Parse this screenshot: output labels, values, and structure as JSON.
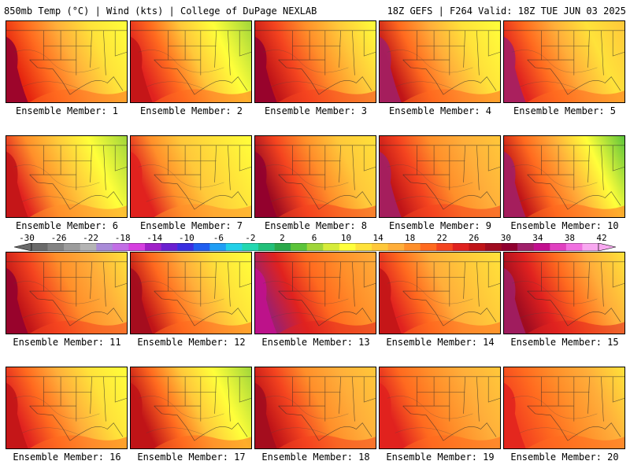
{
  "header": {
    "left": "850mb Temp (°C) | Wind (kts) | College of DuPage NEXLAB",
    "right": "18Z GEFS | F264 Valid: 18Z TUE JUN 03 2025"
  },
  "colorbar": {
    "tick_labels": [
      "-30",
      "-26",
      "-22",
      "-18",
      "-14",
      "-10",
      "-6",
      "-2",
      "2",
      "6",
      "10",
      "14",
      "18",
      "22",
      "26",
      "30",
      "34",
      "38",
      "42"
    ],
    "colors": [
      "#6a6a6a",
      "#838383",
      "#9c9c9c",
      "#b4b4b4",
      "#a98bd8",
      "#c26ee6",
      "#d63fe0",
      "#a020c8",
      "#6a1fd0",
      "#3a2fe0",
      "#1f5ef0",
      "#1f9ef5",
      "#22d0e8",
      "#22d8b0",
      "#22c07a",
      "#2aa84a",
      "#5cc43a",
      "#a0d63a",
      "#d6ec3a",
      "#ffff3a",
      "#ffe23a",
      "#ffc83a",
      "#ffae3a",
      "#ff8f2a",
      "#ff6a1f",
      "#f4441f",
      "#e0221f",
      "#c01418",
      "#a00c20",
      "#900030",
      "#a0206a",
      "#c2108f",
      "#e040c0",
      "#f070e0",
      "#f8a8f0"
    ]
  },
  "members": [
    {
      "label": "Ensemble Member: 1",
      "palette": [
        "#e5240f",
        "#ff6a1f",
        "#ffae3a",
        "#ffe23a",
        "#ffff3a"
      ],
      "west": "#900030"
    },
    {
      "label": "Ensemble Member: 2",
      "palette": [
        "#e0221f",
        "#ff6a1f",
        "#ffc83a",
        "#ffff3a",
        "#a0d63a"
      ],
      "west": "#c01418"
    },
    {
      "label": "Ensemble Member: 3",
      "palette": [
        "#c01418",
        "#f4441f",
        "#ff8f2a",
        "#ffc83a",
        "#ffff3a"
      ],
      "west": "#900030"
    },
    {
      "label": "Ensemble Member: 4",
      "palette": [
        "#c01418",
        "#ff6a1f",
        "#ffae3a",
        "#ffe23a",
        "#ffff3a"
      ],
      "west": "#a0206a"
    },
    {
      "label": "Ensemble Member: 5",
      "palette": [
        "#e0221f",
        "#ff6a1f",
        "#ffae3a",
        "#ffe23a",
        "#ffc83a"
      ],
      "west": "#a0206a"
    },
    {
      "label": "Ensemble Member: 6",
      "palette": [
        "#e0221f",
        "#ff8f2a",
        "#ffc83a",
        "#ffff3a",
        "#a0d63a"
      ],
      "west": "#c01418"
    },
    {
      "label": "Ensemble Member: 7",
      "palette": [
        "#e0221f",
        "#ff8f2a",
        "#ffc83a",
        "#ffe23a",
        "#ffff3a"
      ],
      "west": "#e0221f"
    },
    {
      "label": "Ensemble Member: 8",
      "palette": [
        "#a00c20",
        "#f4441f",
        "#ff8f2a",
        "#ffc83a",
        "#ffe23a"
      ],
      "west": "#900030"
    },
    {
      "label": "Ensemble Member: 9",
      "palette": [
        "#c01418",
        "#f4441f",
        "#ff8f2a",
        "#ffae3a",
        "#ffc83a"
      ],
      "west": "#a0206a"
    },
    {
      "label": "Ensemble Member: 10",
      "palette": [
        "#c01418",
        "#ff6a1f",
        "#ffae3a",
        "#ffff3a",
        "#5cc43a"
      ],
      "west": "#a0206a"
    },
    {
      "label": "Ensemble Member: 11",
      "palette": [
        "#c01418",
        "#f4441f",
        "#ff8f2a",
        "#ffae3a",
        "#ffe23a"
      ],
      "west": "#900030"
    },
    {
      "label": "Ensemble Member: 12",
      "palette": [
        "#c01418",
        "#ff6a1f",
        "#ffae3a",
        "#ffe23a",
        "#ffff3a"
      ],
      "west": "#a00c20"
    },
    {
      "label": "Ensemble Member: 13",
      "palette": [
        "#a0206a",
        "#e0221f",
        "#ff6a1f",
        "#ff8f2a",
        "#ffae3a"
      ],
      "west": "#c2108f"
    },
    {
      "label": "Ensemble Member: 14",
      "palette": [
        "#e0221f",
        "#ff6a1f",
        "#ffae3a",
        "#ffc83a",
        "#ffe23a"
      ],
      "west": "#c01418"
    },
    {
      "label": "Ensemble Member: 15",
      "palette": [
        "#a00c20",
        "#e0221f",
        "#ff6a1f",
        "#ffae3a",
        "#ffe23a"
      ],
      "west": "#a0206a"
    },
    {
      "label": "Ensemble Member: 16",
      "palette": [
        "#e0221f",
        "#ff6a1f",
        "#ffae3a",
        "#ffe23a",
        "#ffff3a"
      ],
      "west": "#c01418"
    },
    {
      "label": "Ensemble Member: 17",
      "palette": [
        "#c01418",
        "#ff6a1f",
        "#ffc83a",
        "#ffff3a",
        "#a0d63a"
      ],
      "west": "#c01418"
    },
    {
      "label": "Ensemble Member: 18",
      "palette": [
        "#c01418",
        "#f4441f",
        "#ff8f2a",
        "#ffae3a",
        "#ffc83a"
      ],
      "west": "#a00c20"
    },
    {
      "label": "Ensemble Member: 19",
      "palette": [
        "#e0221f",
        "#ff6a1f",
        "#ff8f2a",
        "#ffae3a",
        "#ffc83a"
      ],
      "west": "#e0221f"
    },
    {
      "label": "Ensemble Member: 20",
      "palette": [
        "#f4441f",
        "#ff6a1f",
        "#ff8f2a",
        "#ffae3a",
        "#ffe23a"
      ],
      "west": "#e0221f"
    }
  ]
}
